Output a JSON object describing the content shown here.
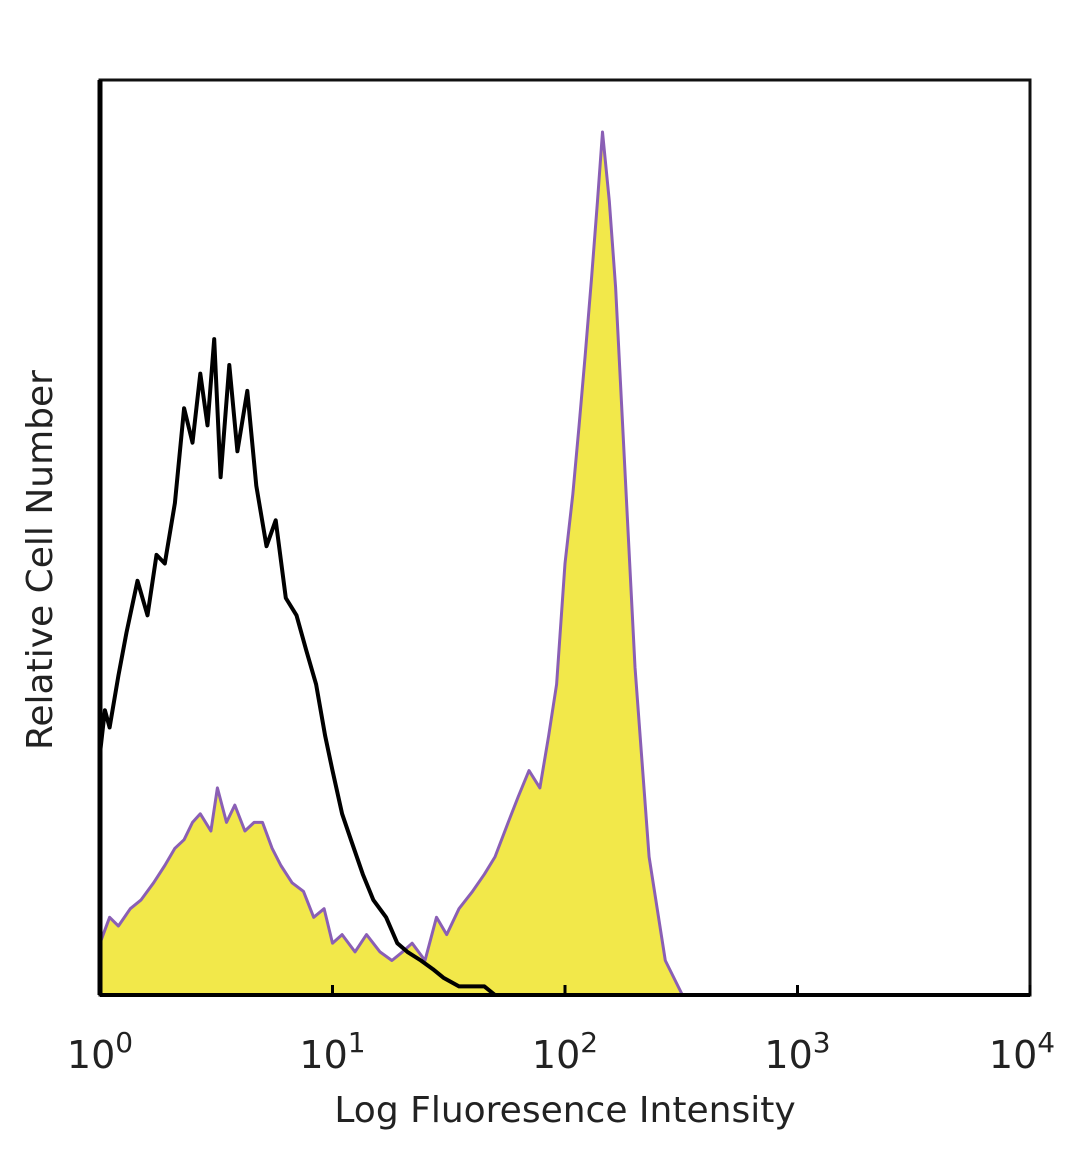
{
  "chart_data": {
    "type": "area",
    "xlabel": "Log Fluoresence Intensity",
    "ylabel": "Relative Cell Number",
    "x_scale": "log",
    "xlim": [
      1,
      10000
    ],
    "ylim": [
      0,
      1
    ],
    "grid": false,
    "x_ticks": [
      {
        "base": "10",
        "exp": "0",
        "value": 1
      },
      {
        "base": "10",
        "exp": "1",
        "value": 10
      },
      {
        "base": "10",
        "exp": "2",
        "value": 100
      },
      {
        "base": "10",
        "exp": "3",
        "value": 1000
      },
      {
        "base": "10",
        "exp": "4",
        "value": 10000
      }
    ],
    "colors": {
      "stained_fill": "#f2e84a",
      "stained_outline": "#8a5fb5",
      "control_line": "#000000",
      "frame": "#111111"
    },
    "series": [
      {
        "style": "filled",
        "x": [
          1.0,
          1.1,
          1.2,
          1.35,
          1.5,
          1.7,
          1.9,
          2.1,
          2.3,
          2.5,
          2.7,
          3.0,
          3.2,
          3.5,
          3.8,
          4.2,
          4.6,
          5.0,
          5.5,
          6.0,
          6.7,
          7.5,
          8.3,
          9.2,
          10.0,
          11.0,
          12.5,
          14.0,
          16.0,
          18.0,
          20.0,
          22.0,
          25.0,
          28.0,
          31.0,
          35.0,
          40.0,
          45.0,
          50.0,
          57.0,
          63.0,
          70.0,
          78.0,
          85.0,
          92.0,
          100.0,
          108.0,
          115.0,
          122.0,
          130.0,
          138.0,
          145.0,
          155.0,
          165.0,
          180.0,
          200.0,
          230.0,
          270.0,
          320.0
        ],
        "y": [
          0.06,
          0.09,
          0.08,
          0.1,
          0.11,
          0.13,
          0.15,
          0.17,
          0.18,
          0.2,
          0.21,
          0.19,
          0.24,
          0.2,
          0.22,
          0.19,
          0.2,
          0.2,
          0.17,
          0.15,
          0.13,
          0.12,
          0.09,
          0.1,
          0.06,
          0.07,
          0.05,
          0.07,
          0.05,
          0.04,
          0.05,
          0.06,
          0.04,
          0.09,
          0.07,
          0.1,
          0.12,
          0.14,
          0.16,
          0.2,
          0.23,
          0.26,
          0.24,
          0.3,
          0.36,
          0.5,
          0.58,
          0.66,
          0.74,
          0.83,
          0.92,
          1.0,
          0.92,
          0.82,
          0.62,
          0.38,
          0.16,
          0.04,
          0.0
        ]
      },
      {
        "style": "line",
        "x": [
          1.0,
          1.05,
          1.1,
          1.2,
          1.3,
          1.45,
          1.6,
          1.75,
          1.9,
          2.1,
          2.3,
          2.5,
          2.7,
          2.9,
          3.1,
          3.3,
          3.6,
          3.9,
          4.3,
          4.7,
          5.2,
          5.7,
          6.3,
          7.0,
          7.7,
          8.5,
          9.3,
          10.0,
          11.0,
          12.0,
          13.5,
          15.0,
          17.0,
          19.0,
          21.0,
          24.0,
          27.0,
          30.0,
          35.0,
          40.0,
          45.0,
          50.0
        ],
        "y": [
          0.28,
          0.33,
          0.31,
          0.37,
          0.42,
          0.48,
          0.44,
          0.51,
          0.5,
          0.57,
          0.68,
          0.64,
          0.72,
          0.66,
          0.76,
          0.6,
          0.73,
          0.63,
          0.7,
          0.59,
          0.52,
          0.55,
          0.46,
          0.44,
          0.4,
          0.36,
          0.3,
          0.26,
          0.21,
          0.18,
          0.14,
          0.11,
          0.09,
          0.06,
          0.05,
          0.04,
          0.03,
          0.02,
          0.01,
          0.01,
          0.01,
          0.0
        ]
      }
    ]
  }
}
